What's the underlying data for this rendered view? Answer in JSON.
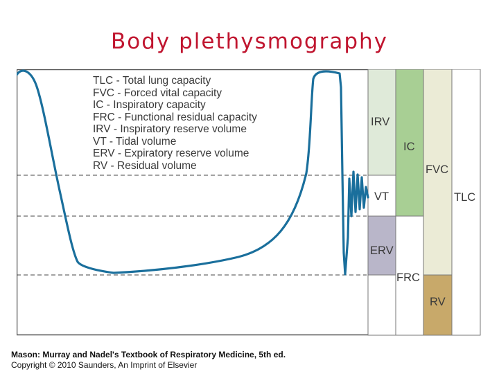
{
  "title": "Body plethysmography",
  "legend": [
    "TLC - Total lung capacity",
    "FVC - Forced vital capacity",
    "IC - Inspiratory capacity",
    "FRC - Functional residual capacity",
    "IRV - Inspiratory reserve volume",
    "VT - Tidal volume",
    "ERV - Expiratory reserve volume",
    "RV - Residual volume"
  ],
  "bars": {
    "irv": "IRV",
    "vt": "VT",
    "erv": "ERV",
    "ic": "IC",
    "frc": "FRC",
    "fvc": "FVC",
    "rv": "RV",
    "tlc": "TLC"
  },
  "colors": {
    "title": "#c0152f",
    "trace": "#1a6f9c",
    "irv_fill": "#dfead9",
    "ic_fill": "#a8cf94",
    "erv_fill": "#b9b6c9",
    "fvc_fill": "#ebebd6",
    "rv_fill": "#c8a96a"
  },
  "credit": {
    "line1": "Mason: Murray and Nadel's Textbook of Respiratory Medicine, 5th ed.",
    "line2": "Copyright © 2010 Saunders, An Imprint of Elsevier"
  }
}
